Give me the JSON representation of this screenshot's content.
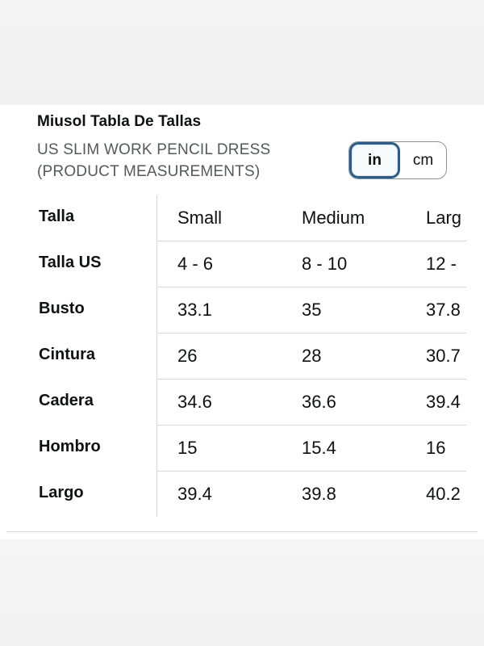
{
  "header": {
    "title": "Miusol Tabla De Tallas",
    "subtitle_line1": "US SLIM WORK PENCIL DRESS",
    "subtitle_line2": "(PRODUCT MEASUREMENTS)"
  },
  "unit_toggle": {
    "options": [
      {
        "label": "in",
        "selected": true
      },
      {
        "label": "cm",
        "selected": false
      }
    ]
  },
  "size_table": {
    "columns": [
      "Small",
      "Medium",
      "Larg"
    ],
    "header_label": "Talla",
    "rows": [
      {
        "label": "Talla US",
        "values": [
          "4 - 6",
          "8 - 10",
          "12 -"
        ]
      },
      {
        "label": "Busto",
        "values": [
          "33.1",
          "35",
          "37.8"
        ]
      },
      {
        "label": "Cintura",
        "values": [
          "26",
          "28",
          "30.7"
        ]
      },
      {
        "label": "Cadera",
        "values": [
          "34.6",
          "36.6",
          "39.4"
        ]
      },
      {
        "label": "Hombro",
        "values": [
          "15",
          "15.4",
          "16"
        ]
      },
      {
        "label": "Largo",
        "values": [
          "39.4",
          "39.8",
          "40.2"
        ]
      }
    ]
  }
}
